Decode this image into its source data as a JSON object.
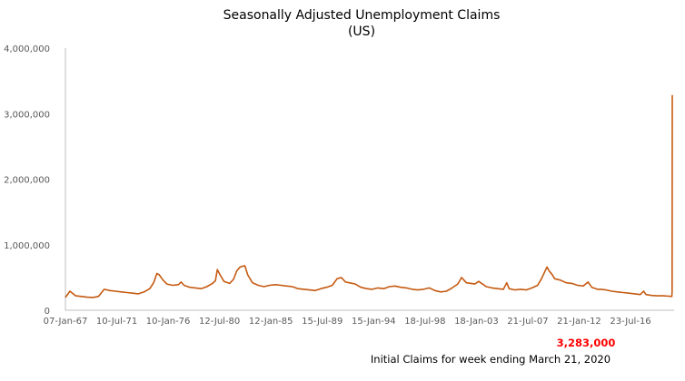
{
  "chart_data": {
    "type": "line",
    "title": "Seasonally Adjusted Unemployment Claims",
    "subtitle": "(US)",
    "xlabel": "",
    "ylabel": "",
    "ylim": [
      0,
      4000000
    ],
    "y_ticks": [
      "0",
      "1,000,000",
      "2,000,000",
      "3,000,000",
      "4,000,000"
    ],
    "y_tick_values": [
      0,
      1000000,
      2000000,
      3000000,
      4000000
    ],
    "x_ticks": [
      "07-Jan-67",
      "10-Jul-71",
      "10-Jan-76",
      "12-Jul-80",
      "12-Jan-85",
      "15-Jul-89",
      "15-Jan-94",
      "18-Jul-98",
      "18-Jan-03",
      "21-Jul-07",
      "21-Jan-12",
      "23-Jul-16"
    ],
    "grid": false,
    "legend": "none",
    "line_color": "#c55a11",
    "series": [
      {
        "x": [
          "1967-01-07",
          "1967-06-01",
          "1967-12-01",
          "1968-06-01",
          "1968-12-01",
          "1969-06-01",
          "1969-12-01",
          "1970-06-01",
          "1970-12-01",
          "1971-06-01",
          "1971-12-01",
          "1972-06-01",
          "1972-12-01",
          "1973-06-01",
          "1973-12-01",
          "1974-06-01",
          "1974-10-01",
          "1975-01-15",
          "1975-04-01",
          "1975-08-01",
          "1975-12-01",
          "1976-06-01",
          "1976-12-01",
          "1977-03-01",
          "1977-06-01",
          "1977-12-01",
          "1978-06-01",
          "1978-12-01",
          "1979-06-01",
          "1979-12-01",
          "1980-03-01",
          "1980-05-01",
          "1980-08-01",
          "1980-12-01",
          "1981-06-01",
          "1981-10-01",
          "1982-01-15",
          "1982-05-01",
          "1982-10-01",
          "1983-01-01",
          "1983-06-01",
          "1983-12-01",
          "1984-06-01",
          "1984-12-01",
          "1985-06-01",
          "1985-12-01",
          "1986-06-01",
          "1986-12-01",
          "1987-06-01",
          "1987-12-01",
          "1988-06-01",
          "1988-12-01",
          "1989-06-01",
          "1989-12-01",
          "1990-06-01",
          "1990-11-01",
          "1991-03-15",
          "1991-08-01",
          "1991-12-01",
          "1992-06-01",
          "1992-12-01",
          "1993-06-01",
          "1993-12-01",
          "1994-06-01",
          "1994-12-01",
          "1995-06-01",
          "1995-12-01",
          "1996-06-01",
          "1996-12-01",
          "1997-06-01",
          "1997-12-01",
          "1998-06-01",
          "1998-12-01",
          "1999-06-01",
          "1999-12-01",
          "2000-06-01",
          "2000-12-01",
          "2001-06-01",
          "2001-10-01",
          "2002-03-01",
          "2002-08-01",
          "2002-12-01",
          "2003-04-01",
          "2003-09-01",
          "2003-12-01",
          "2004-06-01",
          "2004-12-01",
          "2005-06-01",
          "2005-09-15",
          "2005-12-01",
          "2006-06-01",
          "2006-12-01",
          "2007-06-01",
          "2007-12-01",
          "2008-06-01",
          "2008-10-01",
          "2009-03-28",
          "2009-06-01",
          "2009-09-01",
          "2009-12-01",
          "2010-06-01",
          "2010-12-01",
          "2011-06-01",
          "2011-12-01",
          "2012-06-01",
          "2012-11-01",
          "2013-03-01",
          "2013-09-01",
          "2013-12-01",
          "2014-06-01",
          "2014-12-01",
          "2015-06-01",
          "2015-12-01",
          "2016-06-01",
          "2016-12-01",
          "2017-06-01",
          "2017-09-15",
          "2017-12-01",
          "2018-06-01",
          "2018-12-01",
          "2019-06-01",
          "2019-12-01",
          "2020-03-07",
          "2020-03-14",
          "2020-03-21"
        ],
        "values": [
          195000,
          290000,
          220000,
          210000,
          200000,
          195000,
          210000,
          320000,
          300000,
          290000,
          280000,
          270000,
          260000,
          250000,
          280000,
          330000,
          420000,
          560000,
          540000,
          460000,
          400000,
          380000,
          390000,
          430000,
          380000,
          350000,
          340000,
          330000,
          360000,
          410000,
          450000,
          620000,
          540000,
          440000,
          410000,
          470000,
          600000,
          660000,
          680000,
          540000,
          420000,
          380000,
          360000,
          380000,
          390000,
          380000,
          370000,
          360000,
          330000,
          320000,
          310000,
          300000,
          330000,
          350000,
          380000,
          480000,
          500000,
          430000,
          420000,
          400000,
          350000,
          330000,
          320000,
          340000,
          330000,
          360000,
          370000,
          350000,
          340000,
          320000,
          310000,
          320000,
          340000,
          300000,
          280000,
          290000,
          340000,
          400000,
          500000,
          420000,
          410000,
          400000,
          440000,
          390000,
          360000,
          340000,
          330000,
          320000,
          420000,
          330000,
          310000,
          320000,
          310000,
          340000,
          380000,
          480000,
          660000,
          600000,
          550000,
          480000,
          460000,
          420000,
          410000,
          380000,
          370000,
          430000,
          350000,
          320000,
          320000,
          310000,
          290000,
          280000,
          270000,
          260000,
          250000,
          240000,
          290000,
          240000,
          225000,
          220000,
          220000,
          215000,
          211000,
          282000,
          3283000
        ]
      }
    ]
  },
  "annotation": {
    "value": "3,283,000",
    "value_color": "#ff0000",
    "text": "Initial Claims for  week ending March 21, 2020"
  }
}
